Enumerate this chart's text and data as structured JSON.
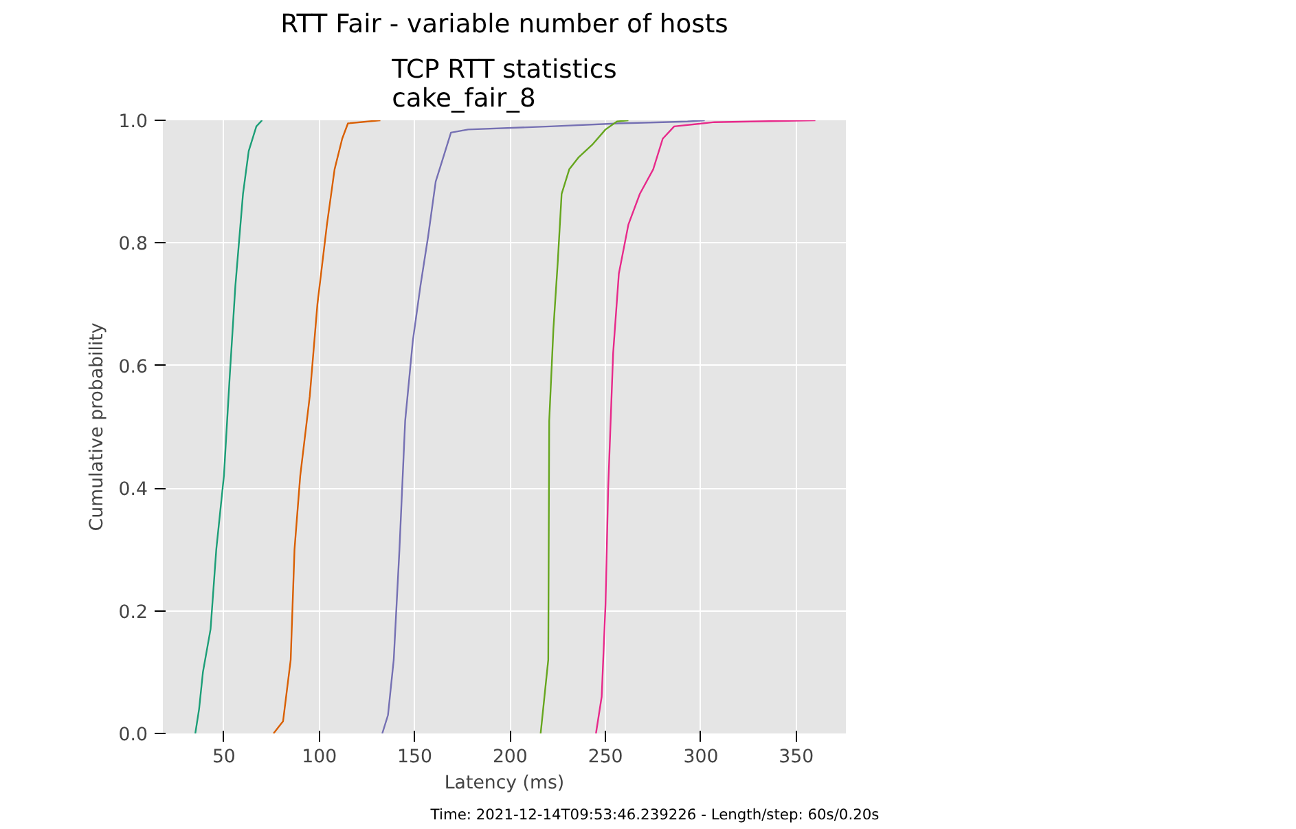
{
  "chart_data": {
    "type": "line",
    "title": "RTT Fair - variable number of hosts",
    "subtitle": "TCP RTT statistics\ncake_fair_8",
    "xlabel": "Latency (ms)",
    "ylabel": "Cumulative probability",
    "annotations": [
      "Time: 2021-12-14T09:53:46.239226 - Length/step: 60s/0.20s"
    ],
    "xlim": [
      18,
      376
    ],
    "ylim": [
      0,
      1.0
    ],
    "xticks": [
      50,
      100,
      150,
      200,
      250,
      300,
      350
    ],
    "yticks": [
      {
        "value": 0,
        "label": "0.0"
      },
      {
        "value": 0.2,
        "label": "0.2"
      },
      {
        "value": 0.4,
        "label": "0.4"
      },
      {
        "value": 0.6,
        "label": "0.6"
      },
      {
        "value": 0.8,
        "label": "0.8"
      },
      {
        "value": 1.0,
        "label": "1.0"
      }
    ],
    "grid": true,
    "series": [
      {
        "color": "#1b9e77",
        "x": [
          35,
          37,
          39,
          43,
          46,
          50,
          53,
          56,
          60,
          63,
          67,
          70
        ],
        "values": [
          0,
          0.04,
          0.1,
          0.17,
          0.3,
          0.42,
          0.58,
          0.73,
          0.88,
          0.95,
          0.99,
          1.0
        ]
      },
      {
        "color": "#d95f02",
        "x": [
          76,
          81,
          85,
          87,
          90,
          95,
          99,
          104,
          108,
          112,
          115,
          132
        ],
        "values": [
          0,
          0.02,
          0.12,
          0.3,
          0.42,
          0.55,
          0.7,
          0.83,
          0.92,
          0.97,
          0.995,
          1.0
        ]
      },
      {
        "color": "#7570b3",
        "x": [
          133,
          136,
          139,
          142,
          145,
          149,
          153,
          157,
          161,
          165,
          169,
          178,
          221,
          257,
          293,
          302
        ],
        "values": [
          0,
          0.03,
          0.12,
          0.3,
          0.51,
          0.64,
          0.73,
          0.81,
          0.9,
          0.94,
          0.98,
          0.985,
          0.99,
          0.995,
          0.998,
          1.0
        ]
      },
      {
        "color": "#e7298a",
        "x": [
          245,
          248,
          250,
          251.4,
          254,
          257,
          262,
          268,
          275,
          280,
          286,
          307,
          360
        ],
        "values": [
          0,
          0.06,
          0.21,
          0.4,
          0.62,
          0.75,
          0.83,
          0.88,
          0.92,
          0.97,
          0.99,
          0.997,
          1.0
        ]
      },
      {
        "color": "#66a61e",
        "x": [
          216,
          218,
          220,
          220.5,
          222.7,
          225,
          227,
          231,
          236,
          243,
          250,
          256,
          262
        ],
        "values": [
          0,
          0.06,
          0.12,
          0.51,
          0.66,
          0.77,
          0.88,
          0.92,
          0.94,
          0.96,
          0.985,
          0.998,
          1.0
        ]
      }
    ]
  }
}
